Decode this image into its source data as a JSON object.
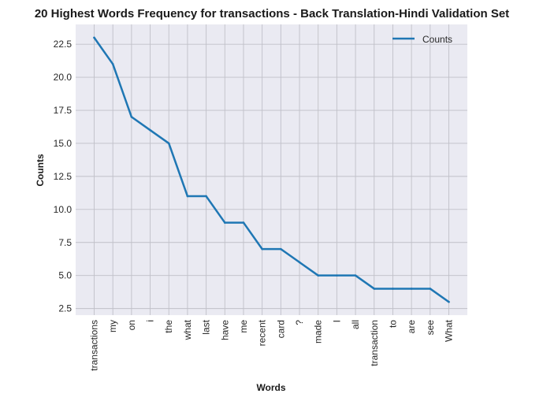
{
  "chart_data": {
    "type": "line",
    "title": "20 Highest Words Frequency for transactions - Back Translation-Hindi Validation Set",
    "xlabel": "Words",
    "ylabel": "Counts",
    "categories": [
      "transactions",
      "my",
      "on",
      "i",
      "the",
      "what",
      "last",
      "have",
      "me",
      "recent",
      "card",
      "?",
      "made",
      "I",
      "all",
      "transaction",
      "to",
      "are",
      "see",
      "What"
    ],
    "series": [
      {
        "name": "Counts",
        "values": [
          23,
          21,
          17,
          16,
          15,
          11,
          11,
          9,
          9,
          7,
          7,
          6,
          5,
          5,
          5,
          4,
          4,
          4,
          4,
          3
        ]
      }
    ],
    "ylim": [
      2.0,
      24.0
    ],
    "yticks": [
      2.5,
      5.0,
      7.5,
      10.0,
      12.5,
      15.0,
      17.5,
      20.0,
      22.5
    ],
    "ytick_labels": [
      "2.5",
      "5.0",
      "7.5",
      "10.0",
      "12.5",
      "15.0",
      "17.5",
      "20.0",
      "22.5"
    ],
    "grid": true,
    "legend_position": "top-right",
    "colors": {
      "line": "#1f77b4",
      "plot_bg": "#eaeaf2",
      "grid": "#c0c0c8"
    }
  }
}
